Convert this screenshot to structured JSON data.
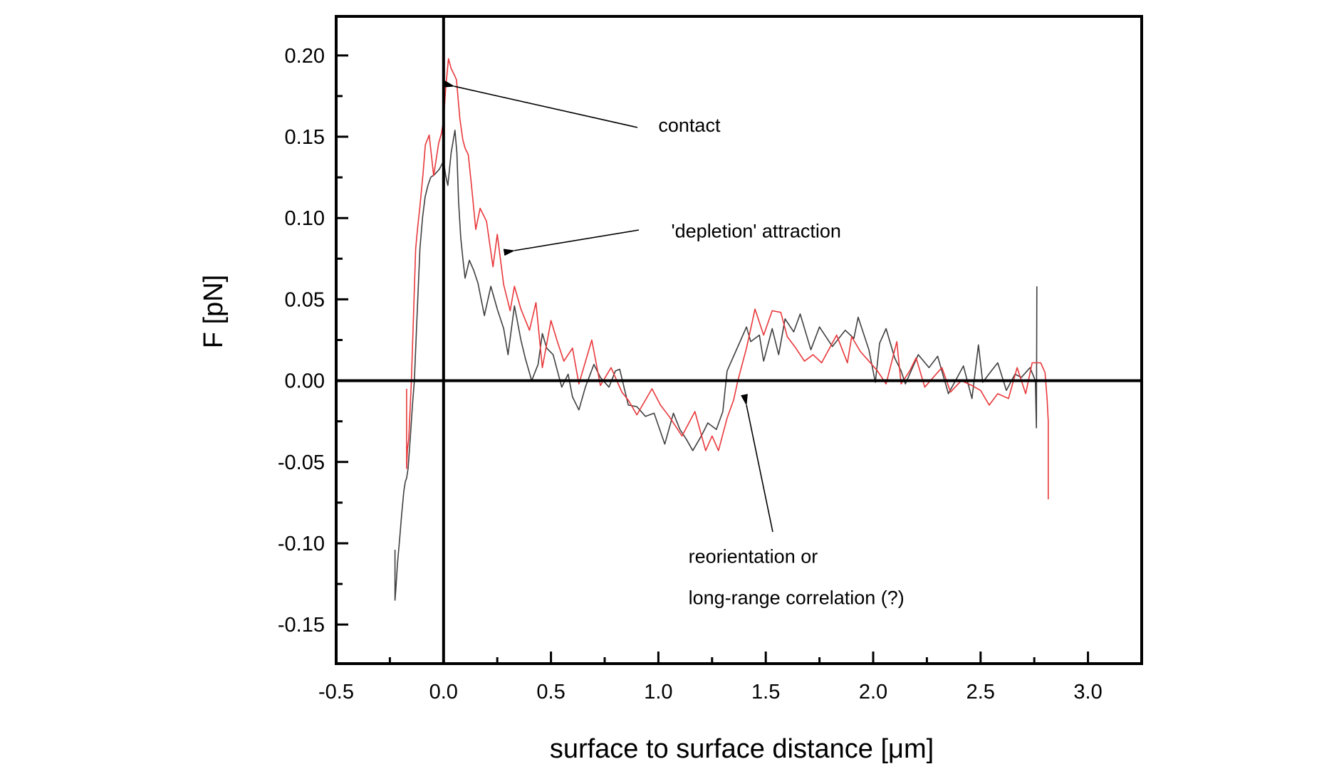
{
  "chart_data": {
    "type": "line",
    "title": "",
    "xlabel": "surface to surface distance [μm]",
    "ylabel": "F [pN]",
    "xlim": [
      -0.5,
      3.25
    ],
    "ylim": [
      -0.174,
      0.224
    ],
    "x_ticks": [
      -0.5,
      0.0,
      0.5,
      1.0,
      1.5,
      2.0,
      2.5,
      3.0
    ],
    "x_tick_labels": [
      "-0.5",
      "0.0",
      "0.5",
      "1.0",
      "1.5",
      "2.0",
      "2.5",
      "3.0"
    ],
    "x_minor_ticks": [
      -0.25,
      0.25,
      0.75,
      1.25,
      1.75,
      2.25,
      2.75
    ],
    "y_ticks": [
      -0.15,
      -0.1,
      -0.05,
      0.0,
      0.05,
      0.1,
      0.15,
      0.2
    ],
    "y_tick_labels": [
      "-0.15",
      "-0.10",
      "-0.05",
      "0.00",
      "0.05",
      "0.10",
      "0.15",
      "0.20"
    ],
    "y_minor_ticks": [
      -0.125,
      -0.075,
      -0.025,
      0.025,
      0.075,
      0.125,
      0.175
    ],
    "grid": false,
    "legend": "none",
    "reference_lines": {
      "x_zero": 0.0,
      "y_zero": 0.0
    },
    "series": [
      {
        "name": "gray trace",
        "color": "#3f3f3f",
        "points": [
          [
            -0.226,
            -0.104
          ],
          [
            -0.226,
            -0.135
          ],
          [
            -0.222,
            -0.128
          ],
          [
            -0.215,
            -0.113
          ],
          [
            -0.205,
            -0.098
          ],
          [
            -0.195,
            -0.082
          ],
          [
            -0.185,
            -0.068
          ],
          [
            -0.178,
            -0.062
          ],
          [
            -0.172,
            -0.06
          ],
          [
            -0.165,
            -0.054
          ],
          [
            -0.155,
            -0.035
          ],
          [
            -0.145,
            -0.015
          ],
          [
            -0.136,
            0.0
          ],
          [
            -0.125,
            0.035
          ],
          [
            -0.11,
            0.081
          ],
          [
            -0.098,
            0.1
          ],
          [
            -0.086,
            0.113
          ],
          [
            -0.073,
            0.12
          ],
          [
            -0.06,
            0.125
          ],
          [
            -0.04,
            0.127
          ],
          [
            -0.02,
            0.13
          ],
          [
            0.0,
            0.135
          ],
          [
            0.01,
            0.126
          ],
          [
            0.02,
            0.12
          ],
          [
            0.035,
            0.14
          ],
          [
            0.053,
            0.154
          ],
          [
            0.062,
            0.14
          ],
          [
            0.07,
            0.11
          ],
          [
            0.08,
            0.088
          ],
          [
            0.09,
            0.075
          ],
          [
            0.1,
            0.063
          ],
          [
            0.12,
            0.074
          ],
          [
            0.14,
            0.068
          ],
          [
            0.16,
            0.06
          ],
          [
            0.19,
            0.04
          ],
          [
            0.22,
            0.058
          ],
          [
            0.25,
            0.044
          ],
          [
            0.28,
            0.032
          ],
          [
            0.3,
            0.016
          ],
          [
            0.33,
            0.046
          ],
          [
            0.36,
            0.025
          ],
          [
            0.38,
            0.014
          ],
          [
            0.41,
            0.0
          ],
          [
            0.44,
            0.01
          ],
          [
            0.46,
            0.029
          ],
          [
            0.48,
            0.02
          ],
          [
            0.51,
            0.016
          ],
          [
            0.55,
            -0.004
          ],
          [
            0.58,
            0.004
          ],
          [
            0.6,
            -0.01
          ],
          [
            0.63,
            -0.018
          ],
          [
            0.66,
            -0.004
          ],
          [
            0.7,
            0.01
          ],
          [
            0.73,
            0.002
          ],
          [
            0.77,
            -0.004
          ],
          [
            0.8,
            0.006
          ],
          [
            0.82,
            0.007
          ],
          [
            0.86,
            -0.015
          ],
          [
            0.9,
            -0.016
          ],
          [
            0.94,
            -0.022
          ],
          [
            0.98,
            -0.02
          ],
          [
            1.03,
            -0.039
          ],
          [
            1.07,
            -0.02
          ],
          [
            1.1,
            -0.03
          ],
          [
            1.13,
            -0.036
          ],
          [
            1.16,
            -0.043
          ],
          [
            1.2,
            -0.034
          ],
          [
            1.23,
            -0.026
          ],
          [
            1.27,
            -0.03
          ],
          [
            1.3,
            -0.019
          ],
          [
            1.32,
            0.006
          ],
          [
            1.36,
            0.018
          ],
          [
            1.41,
            0.033
          ],
          [
            1.43,
            0.024
          ],
          [
            1.47,
            0.028
          ],
          [
            1.49,
            0.012
          ],
          [
            1.53,
            0.032
          ],
          [
            1.56,
            0.016
          ],
          [
            1.59,
            0.038
          ],
          [
            1.63,
            0.03
          ],
          [
            1.66,
            0.041
          ],
          [
            1.71,
            0.019
          ],
          [
            1.75,
            0.033
          ],
          [
            1.81,
            0.021
          ],
          [
            1.87,
            0.031
          ],
          [
            1.91,
            0.026
          ],
          [
            1.93,
            0.039
          ],
          [
            1.98,
            0.019
          ],
          [
            2.01,
            -0.001
          ],
          [
            2.03,
            0.023
          ],
          [
            2.06,
            0.032
          ],
          [
            2.1,
            0.014
          ],
          [
            2.13,
            0.006
          ],
          [
            2.15,
            -0.002
          ],
          [
            2.21,
            0.016
          ],
          [
            2.26,
            0.008
          ],
          [
            2.3,
            0.015
          ],
          [
            2.35,
            -0.008
          ],
          [
            2.42,
            0.009
          ],
          [
            2.46,
            -0.011
          ],
          [
            2.49,
            0.022
          ],
          [
            2.51,
            -0.001
          ],
          [
            2.55,
            0.006
          ],
          [
            2.58,
            0.011
          ],
          [
            2.62,
            -0.006
          ],
          [
            2.66,
            0.004
          ],
          [
            2.69,
            0.002
          ],
          [
            2.73,
            0.008
          ],
          [
            2.755,
            0.0
          ],
          [
            2.76,
            -0.029
          ],
          [
            2.762,
            0.058
          ]
        ]
      },
      {
        "name": "red trace",
        "color": "#e8373a",
        "points": [
          [
            -0.172,
            -0.005
          ],
          [
            -0.172,
            -0.054
          ],
          [
            -0.168,
            -0.042
          ],
          [
            -0.162,
            -0.036
          ],
          [
            -0.155,
            -0.015
          ],
          [
            -0.15,
            0.0
          ],
          [
            -0.14,
            0.04
          ],
          [
            -0.13,
            0.081
          ],
          [
            -0.12,
            0.095
          ],
          [
            -0.11,
            0.107
          ],
          [
            -0.095,
            0.128
          ],
          [
            -0.085,
            0.145
          ],
          [
            -0.067,
            0.151
          ],
          [
            -0.046,
            0.126
          ],
          [
            -0.023,
            0.146
          ],
          [
            -0.01,
            0.152
          ],
          [
            0.0,
            0.16
          ],
          [
            0.01,
            0.18
          ],
          [
            0.023,
            0.198
          ],
          [
            0.035,
            0.192
          ],
          [
            0.05,
            0.188
          ],
          [
            0.06,
            0.185
          ],
          [
            0.076,
            0.161
          ],
          [
            0.09,
            0.148
          ],
          [
            0.1,
            0.143
          ],
          [
            0.115,
            0.139
          ],
          [
            0.13,
            0.12
          ],
          [
            0.15,
            0.093
          ],
          [
            0.17,
            0.106
          ],
          [
            0.2,
            0.098
          ],
          [
            0.23,
            0.07
          ],
          [
            0.25,
            0.09
          ],
          [
            0.28,
            0.059
          ],
          [
            0.31,
            0.043
          ],
          [
            0.33,
            0.058
          ],
          [
            0.36,
            0.044
          ],
          [
            0.4,
            0.031
          ],
          [
            0.43,
            0.048
          ],
          [
            0.46,
            0.008
          ],
          [
            0.5,
            0.037
          ],
          [
            0.53,
            0.024
          ],
          [
            0.56,
            0.012
          ],
          [
            0.6,
            0.02
          ],
          [
            0.63,
            -0.002
          ],
          [
            0.69,
            0.025
          ],
          [
            0.73,
            -0.003
          ],
          [
            0.78,
            0.008
          ],
          [
            0.83,
            -0.007
          ],
          [
            0.86,
            -0.012
          ],
          [
            0.9,
            -0.021
          ],
          [
            0.97,
            -0.005
          ],
          [
            1.01,
            -0.015
          ],
          [
            1.05,
            -0.022
          ],
          [
            1.11,
            -0.034
          ],
          [
            1.17,
            -0.019
          ],
          [
            1.22,
            -0.043
          ],
          [
            1.25,
            -0.034
          ],
          [
            1.28,
            -0.043
          ],
          [
            1.32,
            -0.023
          ],
          [
            1.35,
            -0.012
          ],
          [
            1.37,
            0.0
          ],
          [
            1.41,
            0.02
          ],
          [
            1.45,
            0.044
          ],
          [
            1.49,
            0.028
          ],
          [
            1.53,
            0.043
          ],
          [
            1.57,
            0.042
          ],
          [
            1.6,
            0.027
          ],
          [
            1.64,
            0.02
          ],
          [
            1.68,
            0.012
          ],
          [
            1.72,
            0.016
          ],
          [
            1.76,
            0.011
          ],
          [
            1.83,
            0.028
          ],
          [
            1.88,
            0.011
          ],
          [
            1.9,
            0.027
          ],
          [
            1.94,
            0.018
          ],
          [
            1.98,
            0.012
          ],
          [
            2.02,
            0.006
          ],
          [
            2.06,
            -0.002
          ],
          [
            2.11,
            0.024
          ],
          [
            2.13,
            -0.002
          ],
          [
            2.17,
            0.006
          ],
          [
            2.2,
            0.014
          ],
          [
            2.24,
            -0.004
          ],
          [
            2.28,
            0.002
          ],
          [
            2.32,
            0.008
          ],
          [
            2.36,
            -0.007
          ],
          [
            2.41,
            0.0
          ],
          [
            2.46,
            -0.003
          ],
          [
            2.5,
            -0.006
          ],
          [
            2.54,
            -0.015
          ],
          [
            2.58,
            -0.008
          ],
          [
            2.63,
            -0.011
          ],
          [
            2.67,
            0.008
          ],
          [
            2.71,
            -0.008
          ],
          [
            2.74,
            0.011
          ],
          [
            2.78,
            0.011
          ],
          [
            2.8,
            0.005
          ],
          [
            2.81,
            -0.012
          ],
          [
            2.815,
            -0.025
          ],
          [
            2.815,
            -0.073
          ]
        ]
      }
    ],
    "annotations": [
      {
        "text": "contact",
        "arrow_to": [
          0.05,
          0.181
        ],
        "text_at": [
          1.0,
          0.153
        ]
      },
      {
        "text": "'depletion' attraction",
        "arrow_to": [
          0.33,
          0.08
        ],
        "text_at": [
          1.06,
          0.088
        ]
      },
      {
        "text_lines": [
          "reorientation or",
          "long-range correlation (?)"
        ],
        "arrow_to": [
          1.41,
          -0.015
        ],
        "text_at": [
          1.14,
          -0.112
        ]
      }
    ]
  }
}
